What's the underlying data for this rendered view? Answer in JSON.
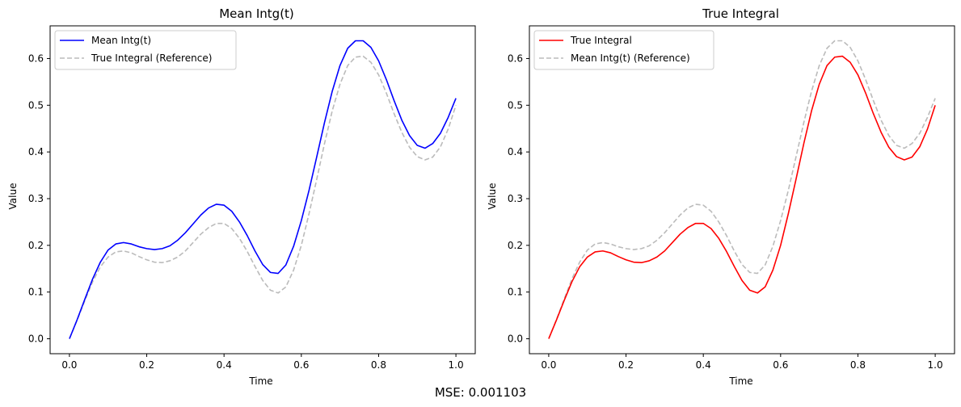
{
  "footer_text": "MSE: 0.001103",
  "chart_data": [
    {
      "type": "line",
      "title": "Mean Intg(t)",
      "xlabel": "Time",
      "ylabel": "Value",
      "xlim": [
        -0.05,
        1.05
      ],
      "ylim": [
        -0.032,
        0.67
      ],
      "xticks": [
        0.0,
        0.2,
        0.4,
        0.6,
        0.8,
        1.0
      ],
      "xtick_labels": [
        "0.0",
        "0.2",
        "0.4",
        "0.6",
        "0.8",
        "1.0"
      ],
      "yticks": [
        0.0,
        0.1,
        0.2,
        0.3,
        0.4,
        0.5,
        0.6
      ],
      "ytick_labels": [
        "0.0",
        "0.1",
        "0.2",
        "0.3",
        "0.4",
        "0.5",
        "0.6"
      ],
      "grid": false,
      "legend_position": "top-left",
      "series": [
        {
          "name": "Mean Intg(t)",
          "color": "#0000ff",
          "style": "solid",
          "x": [
            0.0,
            0.02,
            0.04,
            0.06,
            0.08,
            0.1,
            0.12,
            0.14,
            0.16,
            0.18,
            0.2,
            0.22,
            0.24,
            0.26,
            0.28,
            0.3,
            0.32,
            0.34,
            0.36,
            0.38,
            0.4,
            0.42,
            0.44,
            0.46,
            0.48,
            0.5,
            0.52,
            0.54,
            0.56,
            0.58,
            0.6,
            0.62,
            0.64,
            0.66,
            0.68,
            0.7,
            0.72,
            0.74,
            0.76,
            0.78,
            0.8,
            0.82,
            0.84,
            0.86,
            0.88,
            0.9,
            0.92,
            0.94,
            0.96,
            0.98,
            1.0
          ],
          "y": [
            0.0,
            0.041,
            0.085,
            0.128,
            0.164,
            0.19,
            0.203,
            0.206,
            0.203,
            0.197,
            0.193,
            0.191,
            0.193,
            0.199,
            0.211,
            0.227,
            0.246,
            0.265,
            0.28,
            0.288,
            0.286,
            0.273,
            0.25,
            0.221,
            0.188,
            0.159,
            0.142,
            0.14,
            0.158,
            0.198,
            0.253,
            0.318,
            0.39,
            0.463,
            0.53,
            0.585,
            0.622,
            0.638,
            0.638,
            0.624,
            0.595,
            0.555,
            0.51,
            0.468,
            0.435,
            0.414,
            0.408,
            0.418,
            0.44,
            0.474,
            0.515
          ]
        },
        {
          "name": "True Integral (Reference)",
          "color": "#bbbbbb",
          "style": "dashed",
          "x": [
            0.0,
            0.02,
            0.04,
            0.06,
            0.08,
            0.1,
            0.12,
            0.14,
            0.16,
            0.18,
            0.2,
            0.22,
            0.24,
            0.26,
            0.28,
            0.3,
            0.32,
            0.34,
            0.36,
            0.38,
            0.4,
            0.42,
            0.44,
            0.46,
            0.48,
            0.5,
            0.52,
            0.54,
            0.56,
            0.58,
            0.6,
            0.62,
            0.64,
            0.66,
            0.68,
            0.7,
            0.72,
            0.74,
            0.76,
            0.78,
            0.8,
            0.82,
            0.84,
            0.86,
            0.88,
            0.9,
            0.92,
            0.94,
            0.96,
            0.98,
            1.0
          ],
          "y": [
            0.0,
            0.04,
            0.082,
            0.122,
            0.154,
            0.175,
            0.186,
            0.188,
            0.184,
            0.176,
            0.169,
            0.164,
            0.163,
            0.167,
            0.175,
            0.188,
            0.206,
            0.224,
            0.238,
            0.247,
            0.247,
            0.236,
            0.215,
            0.187,
            0.155,
            0.125,
            0.104,
            0.098,
            0.111,
            0.147,
            0.2,
            0.268,
            0.342,
            0.418,
            0.488,
            0.545,
            0.585,
            0.603,
            0.605,
            0.592,
            0.565,
            0.526,
            0.482,
            0.442,
            0.41,
            0.39,
            0.383,
            0.389,
            0.411,
            0.449,
            0.5
          ]
        }
      ]
    },
    {
      "type": "line",
      "title": "True Integral",
      "xlabel": "Time",
      "ylabel": "Value",
      "xlim": [
        -0.05,
        1.05
      ],
      "ylim": [
        -0.032,
        0.67
      ],
      "xticks": [
        0.0,
        0.2,
        0.4,
        0.6,
        0.8,
        1.0
      ],
      "xtick_labels": [
        "0.0",
        "0.2",
        "0.4",
        "0.6",
        "0.8",
        "1.0"
      ],
      "yticks": [
        0.0,
        0.1,
        0.2,
        0.3,
        0.4,
        0.5,
        0.6
      ],
      "ytick_labels": [
        "0.0",
        "0.1",
        "0.2",
        "0.3",
        "0.4",
        "0.5",
        "0.6"
      ],
      "grid": false,
      "legend_position": "top-left",
      "series": [
        {
          "name": "True Integral",
          "color": "#ff0000",
          "style": "solid",
          "x": [
            0.0,
            0.02,
            0.04,
            0.06,
            0.08,
            0.1,
            0.12,
            0.14,
            0.16,
            0.18,
            0.2,
            0.22,
            0.24,
            0.26,
            0.28,
            0.3,
            0.32,
            0.34,
            0.36,
            0.38,
            0.4,
            0.42,
            0.44,
            0.46,
            0.48,
            0.5,
            0.52,
            0.54,
            0.56,
            0.58,
            0.6,
            0.62,
            0.64,
            0.66,
            0.68,
            0.7,
            0.72,
            0.74,
            0.76,
            0.78,
            0.8,
            0.82,
            0.84,
            0.86,
            0.88,
            0.9,
            0.92,
            0.94,
            0.96,
            0.98,
            1.0
          ],
          "y": [
            0.0,
            0.04,
            0.082,
            0.122,
            0.154,
            0.175,
            0.186,
            0.188,
            0.184,
            0.176,
            0.169,
            0.164,
            0.163,
            0.167,
            0.175,
            0.188,
            0.206,
            0.224,
            0.238,
            0.247,
            0.247,
            0.236,
            0.215,
            0.187,
            0.155,
            0.125,
            0.104,
            0.098,
            0.111,
            0.147,
            0.2,
            0.268,
            0.342,
            0.418,
            0.488,
            0.545,
            0.585,
            0.603,
            0.605,
            0.592,
            0.565,
            0.526,
            0.482,
            0.442,
            0.41,
            0.39,
            0.383,
            0.389,
            0.411,
            0.449,
            0.5
          ]
        },
        {
          "name": "Mean Intg(t) (Reference)",
          "color": "#bbbbbb",
          "style": "dashed",
          "x": [
            0.0,
            0.02,
            0.04,
            0.06,
            0.08,
            0.1,
            0.12,
            0.14,
            0.16,
            0.18,
            0.2,
            0.22,
            0.24,
            0.26,
            0.28,
            0.3,
            0.32,
            0.34,
            0.36,
            0.38,
            0.4,
            0.42,
            0.44,
            0.46,
            0.48,
            0.5,
            0.52,
            0.54,
            0.56,
            0.58,
            0.6,
            0.62,
            0.64,
            0.66,
            0.68,
            0.7,
            0.72,
            0.74,
            0.76,
            0.78,
            0.8,
            0.82,
            0.84,
            0.86,
            0.88,
            0.9,
            0.92,
            0.94,
            0.96,
            0.98,
            1.0
          ],
          "y": [
            0.0,
            0.041,
            0.085,
            0.128,
            0.164,
            0.19,
            0.203,
            0.206,
            0.203,
            0.197,
            0.193,
            0.191,
            0.193,
            0.199,
            0.211,
            0.227,
            0.246,
            0.265,
            0.28,
            0.288,
            0.286,
            0.273,
            0.25,
            0.221,
            0.188,
            0.159,
            0.142,
            0.14,
            0.158,
            0.198,
            0.253,
            0.318,
            0.39,
            0.463,
            0.53,
            0.585,
            0.622,
            0.638,
            0.638,
            0.624,
            0.595,
            0.555,
            0.51,
            0.468,
            0.435,
            0.414,
            0.408,
            0.418,
            0.44,
            0.474,
            0.515
          ]
        }
      ]
    }
  ]
}
